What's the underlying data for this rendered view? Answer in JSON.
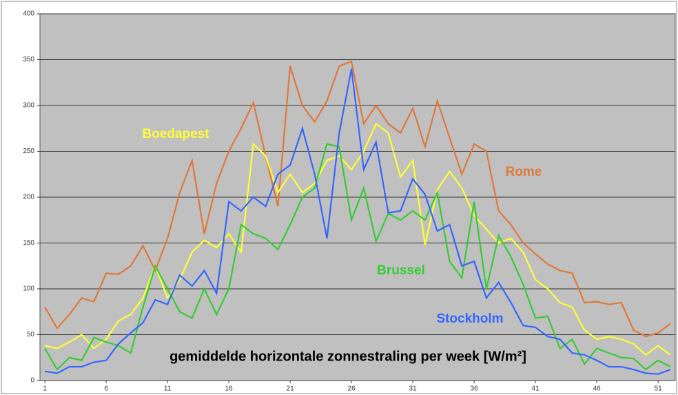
{
  "chart_data": {
    "type": "line",
    "title": "gemiddelde horizontale zonnestraling per week [W/m²]",
    "x": [
      1,
      2,
      3,
      4,
      5,
      6,
      7,
      8,
      9,
      10,
      11,
      12,
      13,
      14,
      15,
      16,
      17,
      18,
      19,
      20,
      21,
      22,
      23,
      24,
      25,
      26,
      27,
      28,
      29,
      30,
      31,
      32,
      33,
      34,
      35,
      36,
      37,
      38,
      39,
      40,
      41,
      42,
      43,
      44,
      45,
      46,
      47,
      48,
      49,
      50,
      51,
      52
    ],
    "xlim": [
      0.6,
      52.4
    ],
    "xticks": [
      1,
      6,
      11,
      16,
      21,
      26,
      31,
      36,
      41,
      46,
      51
    ],
    "ylim": [
      0,
      400
    ],
    "yticks": [
      0,
      50,
      100,
      150,
      200,
      250,
      300,
      350,
      400
    ],
    "grid": true,
    "series": [
      {
        "name": "Rome",
        "color": "#e0773a",
        "values": [
          80,
          57,
          72,
          90,
          86,
          117,
          116,
          125,
          147,
          120,
          155,
          205,
          240,
          160,
          215,
          250,
          275,
          303,
          245,
          190,
          343,
          300,
          282,
          305,
          343,
          348,
          280,
          300,
          280,
          270,
          297,
          255,
          305,
          265,
          225,
          258,
          250,
          185,
          170,
          150,
          138,
          127,
          120,
          117,
          85,
          86,
          83,
          85,
          55,
          48,
          52,
          62
        ]
      },
      {
        "name": "Boedapest",
        "color": "#ffff33",
        "values": [
          38,
          35,
          42,
          50,
          35,
          45,
          65,
          72,
          90,
          125,
          90,
          110,
          140,
          153,
          145,
          160,
          140,
          258,
          245,
          205,
          225,
          205,
          215,
          240,
          245,
          230,
          250,
          280,
          270,
          222,
          240,
          148,
          208,
          228,
          210,
          180,
          165,
          150,
          155,
          140,
          110,
          100,
          85,
          80,
          55,
          45,
          48,
          45,
          40,
          28,
          38,
          28
        ]
      },
      {
        "name": "Brussel",
        "color": "#33cc33",
        "values": [
          35,
          12,
          25,
          22,
          47,
          42,
          38,
          30,
          80,
          125,
          100,
          75,
          68,
          100,
          72,
          100,
          170,
          160,
          155,
          143,
          170,
          200,
          210,
          258,
          255,
          175,
          210,
          152,
          182,
          175,
          185,
          175,
          205,
          130,
          112,
          195,
          100,
          158,
          135,
          105,
          68,
          70,
          35,
          45,
          18,
          35,
          30,
          25,
          24,
          12,
          22,
          15
        ]
      },
      {
        "name": "Stockholm",
        "color": "#3366ff",
        "values": [
          10,
          8,
          15,
          15,
          20,
          22,
          40,
          52,
          63,
          88,
          83,
          115,
          103,
          120,
          95,
          195,
          185,
          200,
          190,
          225,
          235,
          275,
          225,
          155,
          270,
          340,
          230,
          260,
          183,
          185,
          220,
          203,
          163,
          170,
          125,
          130,
          90,
          107,
          85,
          60,
          58,
          48,
          45,
          30,
          28,
          22,
          15,
          15,
          12,
          8,
          7,
          12
        ]
      }
    ]
  }
}
